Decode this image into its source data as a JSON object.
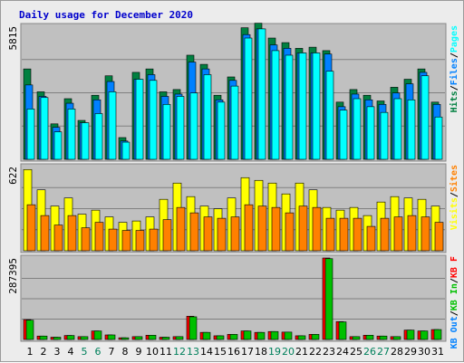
{
  "title": "Daily usage for December 2020",
  "colors": {
    "pages": "#00ffff",
    "files": "#0080ff",
    "hits": "#008040",
    "visits": "#ffff00",
    "sites": "#ff8000",
    "kb_in": "#00c000",
    "kb_out": "#0080ff",
    "kb_f": "#ff0000",
    "weekday": "#000000",
    "weekend": "#00805c"
  },
  "chart_data": [
    {
      "type": "bar",
      "name": "hits_files_pages",
      "ymax_label": "5815",
      "ymax": 5815,
      "legend": [
        "Pages",
        "/",
        "Files",
        "/",
        "Hits"
      ],
      "categories": [
        "1",
        "2",
        "3",
        "4",
        "5",
        "6",
        "7",
        "8",
        "9",
        "10",
        "11",
        "12",
        "13",
        "14",
        "15",
        "16",
        "17",
        "18",
        "19",
        "20",
        "21",
        "22",
        "23",
        "24",
        "25",
        "26",
        "27",
        "28",
        "29",
        "30",
        "31"
      ],
      "series": [
        {
          "name": "Hits",
          "values": [
            3950,
            2950,
            1550,
            2650,
            1700,
            2800,
            3650,
            950,
            3800,
            3950,
            2950,
            3050,
            4550,
            4150,
            2800,
            3600,
            5750,
            5950,
            5300,
            5100,
            4850,
            4900,
            4750,
            2500,
            3050,
            2800,
            2550,
            3150,
            3500,
            3950,
            2500
          ]
        },
        {
          "name": "Files",
          "values": [
            3250,
            2750,
            1400,
            2450,
            1600,
            2600,
            3400,
            800,
            3500,
            3700,
            2750,
            2850,
            4250,
            3950,
            2600,
            3450,
            5450,
            5700,
            5000,
            4850,
            4650,
            4650,
            4600,
            2300,
            2850,
            2600,
            2400,
            2900,
            3300,
            3800,
            2400
          ]
        },
        {
          "name": "Pages",
          "values": [
            2200,
            2700,
            1200,
            2200,
            1600,
            2000,
            2950,
            750,
            3500,
            3450,
            2400,
            2750,
            2900,
            3700,
            2500,
            3200,
            5300,
            5700,
            4750,
            4550,
            4650,
            4650,
            3850,
            2150,
            2650,
            2300,
            2050,
            2650,
            2600,
            3650,
            1850
          ]
        }
      ]
    },
    {
      "type": "bar",
      "name": "visits_sites",
      "ymax_label": "622",
      "ymax": 622,
      "legend": [
        "Sites",
        "/",
        "Visits"
      ],
      "categories": [
        "1",
        "2",
        "3",
        "4",
        "5",
        "6",
        "7",
        "8",
        "9",
        "10",
        "11",
        "12",
        "13",
        "14",
        "15",
        "16",
        "17",
        "18",
        "19",
        "20",
        "21",
        "22",
        "23",
        "24",
        "25",
        "26",
        "27",
        "28",
        "29",
        "30",
        "31"
      ],
      "series": [
        {
          "name": "Visits",
          "values": [
            600,
            450,
            330,
            390,
            270,
            300,
            250,
            210,
            220,
            250,
            380,
            500,
            400,
            330,
            310,
            390,
            540,
            520,
            500,
            420,
            500,
            450,
            320,
            300,
            320,
            260,
            360,
            400,
            390,
            380,
            330
          ]
        },
        {
          "name": "Sites",
          "values": [
            340,
            260,
            190,
            260,
            170,
            210,
            160,
            150,
            150,
            160,
            230,
            320,
            280,
            250,
            240,
            250,
            340,
            330,
            320,
            280,
            330,
            320,
            240,
            240,
            240,
            180,
            240,
            250,
            260,
            250,
            210
          ]
        }
      ]
    },
    {
      "type": "bar",
      "name": "kb_in_out",
      "ymax_label": "287395",
      "ymax": 287395,
      "legend": [
        "KB F",
        "/",
        "KB In",
        "/",
        "KB Out"
      ],
      "categories": [
        "1",
        "2",
        "3",
        "4",
        "5",
        "6",
        "7",
        "8",
        "9",
        "10",
        "11",
        "12",
        "13",
        "14",
        "15",
        "16",
        "17",
        "18",
        "19",
        "20",
        "21",
        "22",
        "23",
        "24",
        "25",
        "26",
        "27",
        "28",
        "29",
        "30",
        "31"
      ],
      "series": [
        {
          "name": "KB F",
          "values": [
            70000,
            12000,
            8000,
            14000,
            10000,
            30000,
            16000,
            6000,
            10000,
            15000,
            8000,
            10000,
            82000,
            25000,
            13000,
            18000,
            30000,
            25000,
            28000,
            26000,
            13000,
            18000,
            287395,
            63000,
            10000,
            15000,
            12000,
            10000,
            33000,
            30000,
            35000
          ]
        },
        {
          "name": "KB In",
          "values": [
            68000,
            12000,
            8000,
            14000,
            10000,
            30000,
            16000,
            6000,
            10000,
            15000,
            8000,
            10000,
            80000,
            25000,
            13000,
            18000,
            30000,
            25000,
            28000,
            26000,
            13000,
            18000,
            285000,
            62000,
            10000,
            15000,
            12000,
            10000,
            33000,
            30000,
            35000
          ]
        }
      ]
    }
  ],
  "days": [
    "1",
    "2",
    "3",
    "4",
    "5",
    "6",
    "7",
    "8",
    "9",
    "10",
    "11",
    "12",
    "13",
    "14",
    "15",
    "16",
    "17",
    "18",
    "19",
    "20",
    "21",
    "22",
    "23",
    "24",
    "25",
    "26",
    "27",
    "28",
    "29",
    "30",
    "31"
  ],
  "weekend_days": [
    "5",
    "6",
    "12",
    "13",
    "19",
    "20",
    "26",
    "27"
  ]
}
